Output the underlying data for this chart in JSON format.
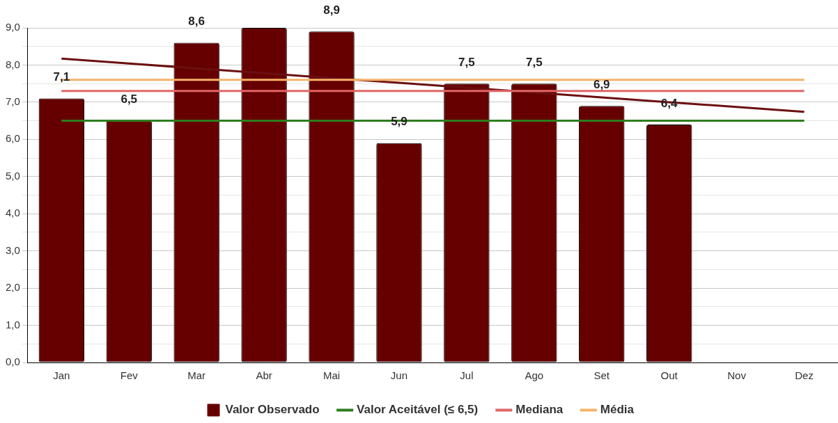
{
  "chart_data": {
    "type": "bar",
    "categories": [
      "Jan",
      "Fev",
      "Mar",
      "Abr",
      "Mai",
      "Jun",
      "Jul",
      "Ago",
      "Set",
      "Out",
      "Nov",
      "Dez"
    ],
    "series": [
      {
        "name": "Valor Observado",
        "color": "#660000",
        "values": [
          7.1,
          6.5,
          8.6,
          9.0,
          8.9,
          5.9,
          7.5,
          7.5,
          6.9,
          6.4,
          null,
          null
        ],
        "value_labels": [
          "7,1",
          "6,5",
          "8,6",
          null,
          "8,9",
          "5,9",
          "7,5",
          "7,5",
          "6,9",
          "6,4",
          null,
          null
        ]
      },
      {
        "name": "Valor Aceitável (≤ 6,5)",
        "type": "line",
        "color": "#2e7d1e",
        "values": [
          6.5,
          6.5,
          6.5,
          6.5,
          6.5,
          6.5,
          6.5,
          6.5,
          6.5,
          6.5,
          6.5,
          6.5
        ]
      },
      {
        "name": "Mediana",
        "type": "line",
        "color": "#e06666",
        "values": [
          7.3,
          7.3,
          7.3,
          7.3,
          7.3,
          7.3,
          7.3,
          7.3,
          7.3,
          7.3,
          7.3,
          7.3
        ]
      },
      {
        "name": "Média",
        "type": "line",
        "color": "#f6b26b",
        "values": [
          7.6,
          7.6,
          7.6,
          7.6,
          7.6,
          7.6,
          7.6,
          7.6,
          7.6,
          7.6,
          7.6,
          7.6
        ]
      },
      {
        "type": "line",
        "color": "#6b0f0f",
        "values": [
          8.17,
          8.04,
          7.91,
          7.78,
          7.65,
          7.52,
          7.39,
          7.26,
          7.13,
          7.0,
          6.87,
          6.74
        ]
      }
    ],
    "ylim": [
      0,
      9
    ],
    "yticks": [
      {
        "value": 0,
        "label": "0,0"
      },
      {
        "value": 0.5,
        "label": null
      },
      {
        "value": 1,
        "label": "1,0"
      },
      {
        "value": 1.5,
        "label": null
      },
      {
        "value": 2,
        "label": "2,0"
      },
      {
        "value": 2.5,
        "label": null
      },
      {
        "value": 3,
        "label": "3,0"
      },
      {
        "value": 3.5,
        "label": null
      },
      {
        "value": 4,
        "label": "4,0"
      },
      {
        "value": 4.5,
        "label": null
      },
      {
        "value": 5,
        "label": "5,0"
      },
      {
        "value": 5.5,
        "label": null
      },
      {
        "value": 6,
        "label": "6,0"
      },
      {
        "value": 6.5,
        "label": null
      },
      {
        "value": 7,
        "label": "7,0"
      },
      {
        "value": 7.5,
        "label": null
      },
      {
        "value": 8,
        "label": "8,0"
      },
      {
        "value": 8.5,
        "label": null
      },
      {
        "value": 9,
        "label": "9,0"
      }
    ],
    "grid": "y",
    "legend": "bottom",
    "marker": "none",
    "line_style": "solid"
  }
}
